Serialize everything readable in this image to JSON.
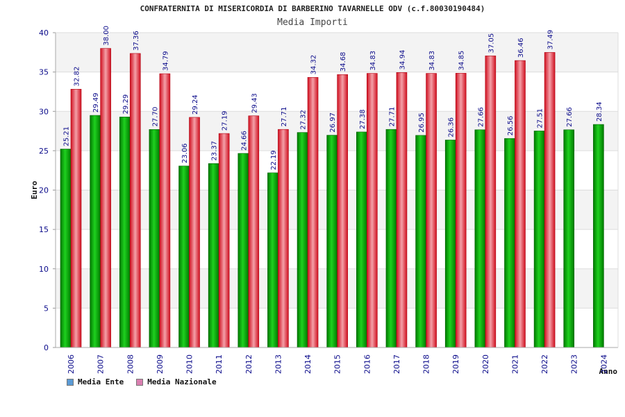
{
  "header": {
    "title": "CONFRATERNITA DI MISERICORDIA DI BARBERINO TAVARNELLE ODV (c.f.80030190484)",
    "subtitle": "Media Importi"
  },
  "legend": {
    "ente_label": "Media Ente",
    "nazionale_label": "Media Nazionale"
  },
  "colors": {
    "ente": "#00b000",
    "nazionale": "#e8202a",
    "legend_ente": "#5b9bd5",
    "legend_nazionale": "#d97fb0",
    "axis_text": "#0a0a8a",
    "band": "#f3f3f3"
  },
  "chart_data": {
    "type": "bar",
    "title": "Media Importi",
    "xlabel": "Anno",
    "ylabel": "Euro",
    "ylim": [
      0,
      40
    ],
    "yticks": [
      0,
      5,
      10,
      15,
      20,
      25,
      30,
      35,
      40
    ],
    "categories": [
      "2006",
      "2007",
      "2008",
      "2009",
      "2010",
      "2011",
      "2012",
      "2013",
      "2014",
      "2015",
      "2016",
      "2017",
      "2018",
      "2019",
      "2020",
      "2021",
      "2022",
      "2023",
      "2024"
    ],
    "series": [
      {
        "name": "Media Ente",
        "values": [
          25.21,
          29.49,
          29.29,
          27.7,
          23.06,
          23.37,
          24.66,
          22.19,
          27.32,
          26.97,
          27.38,
          27.71,
          26.95,
          26.36,
          27.66,
          26.56,
          27.51,
          27.66,
          28.34
        ],
        "labels": [
          "25.21",
          "29.49",
          "29.29",
          "27.70",
          "23.06",
          "23.37",
          "24.66",
          "22.19",
          "27.32",
          "26.97",
          "27.38",
          "27.71",
          "26.95",
          "26.36",
          "27.66",
          "26.56",
          "27.51",
          "27.66",
          "28.34"
        ]
      },
      {
        "name": "Media Nazionale",
        "values": [
          32.82,
          38.0,
          37.36,
          34.79,
          29.24,
          27.19,
          29.43,
          27.71,
          34.32,
          34.68,
          34.83,
          34.94,
          34.83,
          34.85,
          37.05,
          36.46,
          37.49,
          null,
          null
        ],
        "labels": [
          "32.82",
          "38.00",
          "37.36",
          "34.79",
          "29.24",
          "27.19",
          "29.43",
          "27.71",
          "34.32",
          "34.68",
          "34.83",
          "34.94",
          "34.83",
          "34.85",
          "37.05",
          "36.46",
          "37.49",
          "",
          ""
        ]
      }
    ]
  }
}
